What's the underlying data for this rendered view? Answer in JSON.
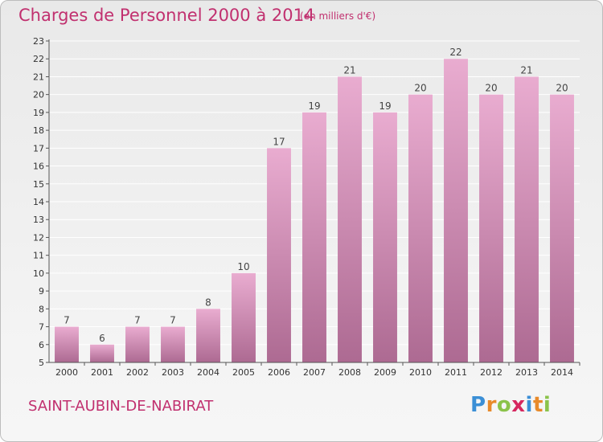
{
  "header": {
    "title": "Charges de Personnel 2000 à 2014",
    "unit": "(en milliers d'€)"
  },
  "footer": {
    "place": "SAINT-AUBIN-DE-NABIRAT",
    "logo_letters": [
      "P",
      "r",
      "o",
      "x",
      "i",
      "t",
      "i"
    ],
    "logo_colors": [
      "#3b8fd6",
      "#e88a2a",
      "#8bc34a",
      "#d6275f",
      "#3b8fd6",
      "#e88a2a",
      "#8bc34a"
    ]
  },
  "colors": {
    "bar_top": "#e9acd0",
    "bar_bottom": "#ad6a92",
    "title": "#c1306f"
  },
  "chart_data": {
    "type": "bar",
    "title": "Charges de Personnel 2000 à 2014",
    "subtitle": "(en milliers d'€)",
    "categories": [
      "2000",
      "2001",
      "2002",
      "2003",
      "2004",
      "2005",
      "2006",
      "2007",
      "2008",
      "2009",
      "2010",
      "2011",
      "2012",
      "2013",
      "2014"
    ],
    "values": [
      7,
      6,
      7,
      7,
      8,
      10,
      17,
      19,
      21,
      19,
      20,
      22,
      20,
      21,
      20
    ],
    "ylim": [
      5,
      23
    ],
    "yticks": [
      5,
      6,
      7,
      8,
      9,
      10,
      11,
      12,
      13,
      14,
      15,
      16,
      17,
      18,
      19,
      20,
      21,
      22,
      23
    ],
    "grid": true,
    "xlabel": "",
    "ylabel": ""
  }
}
